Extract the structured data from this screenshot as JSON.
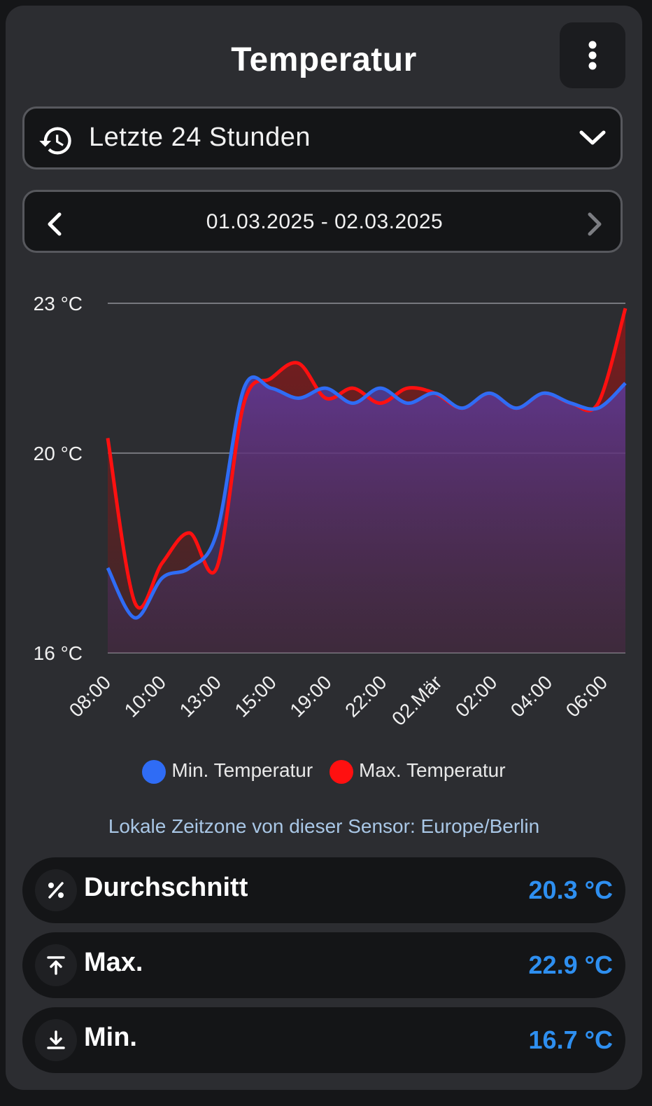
{
  "header": {
    "title": "Temperatur"
  },
  "menu": {
    "icon": "more-vertical-icon"
  },
  "period_select": {
    "icon": "history-icon",
    "label": "Letzte 24 Stunden",
    "dropdown_icon": "chevron-down-icon"
  },
  "date_range": {
    "prev_icon": "chevron-left-icon",
    "label": "01.03.2025 - 02.03.2025",
    "next_icon": "chevron-right-icon"
  },
  "chart_data": {
    "type": "area",
    "y_tick_labels": [
      "23 °C",
      "20 °C",
      "16 °C"
    ],
    "y_ticks": [
      23,
      20,
      16
    ],
    "ylim": [
      16,
      23
    ],
    "x_tick_labels": [
      "08:00",
      "10:00",
      "13:00",
      "15:00",
      "19:00",
      "22:00",
      "02.Mär",
      "02:00",
      "04:00",
      "06:00"
    ],
    "grid": true,
    "legend_position": "bottom",
    "x_index": [
      0,
      0.5,
      1,
      1.5,
      2,
      2.5,
      3,
      3.5,
      4,
      4.5,
      5,
      5.5,
      6,
      6.5,
      7,
      7.5,
      8,
      8.5,
      9,
      9.5
    ],
    "series": [
      {
        "name": "Min. Temperatur",
        "color": "#2f6cf5",
        "values": [
          17.7,
          16.7,
          17.5,
          17.7,
          18.4,
          21.3,
          21.3,
          21.1,
          21.3,
          21.0,
          21.3,
          21.0,
          21.2,
          20.9,
          21.2,
          20.9,
          21.2,
          21.0,
          20.9,
          21.4
        ]
      },
      {
        "name": "Max. Temperatur",
        "color": "#ff1010",
        "values": [
          20.3,
          17.0,
          17.8,
          18.4,
          17.7,
          21.0,
          21.5,
          21.8,
          21.1,
          21.3,
          21.0,
          21.3,
          21.2,
          20.9,
          21.2,
          20.9,
          21.2,
          21.0,
          21.0,
          22.9
        ]
      }
    ]
  },
  "timezone_note": "Lokale Zeitzone von dieser Sensor: Europe/Berlin",
  "stats": [
    {
      "icon": "percent-icon",
      "label": "Durchschnitt",
      "value": "20.3 °C"
    },
    {
      "icon": "arrow-collapse-up-icon",
      "label": "Max.",
      "value": "22.9 °C"
    },
    {
      "icon": "download-icon",
      "label": "Min.",
      "value": "16.7 °C"
    }
  ]
}
